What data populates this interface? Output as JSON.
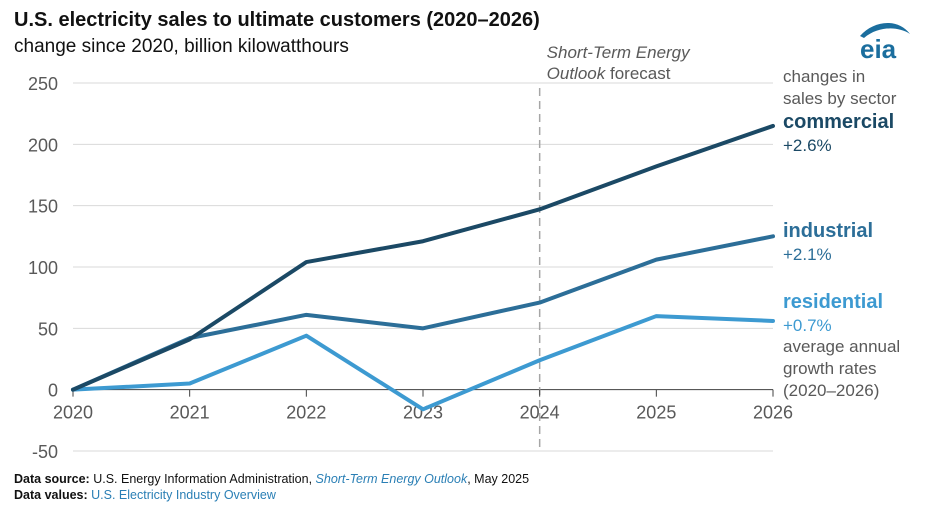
{
  "header": {
    "title": "U.S. electricity sales to ultimate customers (2020–2026)",
    "subtitle": "change since 2020, billion kilowatthours",
    "logo_text": "eia"
  },
  "forecast_label": {
    "line1_italic": "Short-Term Energy",
    "line2_italic": "Outlook",
    "line2_plain": " forecast"
  },
  "annotations": {
    "sector_caption": [
      "changes in",
      "sales by sector"
    ],
    "rate_caption": [
      "average annual",
      "growth rates",
      "(2020–2026)"
    ]
  },
  "footer": {
    "source_label": "Data source:",
    "source_text_1": " U.S. Energy Information Administration, ",
    "source_link": "Short-Term Energy Outlook",
    "source_text_2": ", May 2025",
    "values_label": "Data values:",
    "values_link": "U.S. Electricity Industry Overview"
  },
  "colors": {
    "commercial": "#1b4965",
    "industrial": "#2c6e98",
    "residential": "#3d9ad1",
    "axis_text": "#595959",
    "grid": "#d9d9d9",
    "forecast_line": "#a6a6a6",
    "logo": "#1b6e9e"
  },
  "chart_data": {
    "type": "line",
    "x": [
      "2020",
      "2021",
      "2022",
      "2023",
      "2024",
      "2025",
      "2026"
    ],
    "ylim": [
      -50,
      250
    ],
    "yticks": [
      "-50",
      "0",
      "50",
      "100",
      "150",
      "200",
      "250"
    ],
    "grid": true,
    "forecast_start": "2024",
    "series": [
      {
        "name": "commercial",
        "rate": "+2.6%",
        "values": [
          0,
          41,
          104,
          121,
          147,
          182,
          215
        ]
      },
      {
        "name": "industrial",
        "rate": "+2.1%",
        "values": [
          0,
          42,
          61,
          50,
          71,
          106,
          125
        ]
      },
      {
        "name": "residential",
        "rate": "+0.7%",
        "values": [
          0,
          5,
          44,
          -16,
          24,
          60,
          56
        ]
      }
    ]
  }
}
